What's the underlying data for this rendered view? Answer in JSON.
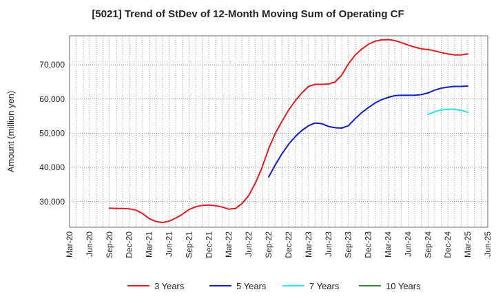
{
  "chart_data": {
    "type": "line",
    "title": "[5021]  Trend of StDev of 12-Month Moving Sum of Operating CF",
    "xlabel": "",
    "ylabel": "Amount (million yen)",
    "ylim": [
      22500,
      78500
    ],
    "yticks": [
      30000,
      40000,
      50000,
      60000,
      70000
    ],
    "ytick_labels": [
      "30,000",
      "40,000",
      "50,000",
      "60,000",
      "70,000"
    ],
    "x_range": [
      "2020-03",
      "2025-06"
    ],
    "xtick_labels": [
      "Mar-20",
      "Jun-20",
      "Sep-20",
      "Dec-20",
      "Mar-21",
      "Jun-21",
      "Sep-21",
      "Dec-21",
      "Mar-22",
      "Jun-22",
      "Sep-22",
      "Dec-22",
      "Mar-23",
      "Jun-23",
      "Sep-23",
      "Dec-23",
      "Mar-24",
      "Jun-24",
      "Sep-24",
      "Dec-24",
      "Mar-25",
      "Jun-25"
    ],
    "grid": true,
    "legend_position": "bottom",
    "series": [
      {
        "name": "3 Years",
        "color": "#e31a1c",
        "points": [
          [
            "2020-09",
            28100
          ],
          [
            "2020-10",
            28000
          ],
          [
            "2020-11",
            28000
          ],
          [
            "2020-12",
            27900
          ],
          [
            "2021-01",
            27500
          ],
          [
            "2021-02",
            26500
          ],
          [
            "2021-03",
            25000
          ],
          [
            "2021-04",
            24200
          ],
          [
            "2021-05",
            23900
          ],
          [
            "2021-06",
            24300
          ],
          [
            "2021-07",
            25200
          ],
          [
            "2021-08",
            26300
          ],
          [
            "2021-09",
            27700
          ],
          [
            "2021-10",
            28500
          ],
          [
            "2021-11",
            28900
          ],
          [
            "2021-12",
            29000
          ],
          [
            "2022-01",
            28800
          ],
          [
            "2022-02",
            28400
          ],
          [
            "2022-03",
            27800
          ],
          [
            "2022-04",
            28000
          ],
          [
            "2022-05",
            29500
          ],
          [
            "2022-06",
            31800
          ],
          [
            "2022-07",
            35500
          ],
          [
            "2022-08",
            40000
          ],
          [
            "2022-09",
            45500
          ],
          [
            "2022-10",
            50000
          ],
          [
            "2022-11",
            53500
          ],
          [
            "2022-12",
            56800
          ],
          [
            "2023-01",
            59500
          ],
          [
            "2023-02",
            61800
          ],
          [
            "2023-03",
            63700
          ],
          [
            "2023-04",
            64300
          ],
          [
            "2023-05",
            64300
          ],
          [
            "2023-06",
            64400
          ],
          [
            "2023-07",
            65000
          ],
          [
            "2023-08",
            67000
          ],
          [
            "2023-09",
            70300
          ],
          [
            "2023-10",
            72800
          ],
          [
            "2023-11",
            74600
          ],
          [
            "2023-12",
            76000
          ],
          [
            "2024-01",
            76900
          ],
          [
            "2024-02",
            77300
          ],
          [
            "2024-03",
            77400
          ],
          [
            "2024-04",
            77100
          ],
          [
            "2024-05",
            76500
          ],
          [
            "2024-06",
            75800
          ],
          [
            "2024-07",
            75200
          ],
          [
            "2024-08",
            74700
          ],
          [
            "2024-09",
            74500
          ],
          [
            "2024-10",
            74100
          ],
          [
            "2024-11",
            73600
          ],
          [
            "2024-12",
            73200
          ],
          [
            "2025-01",
            72900
          ],
          [
            "2025-02",
            72900
          ],
          [
            "2025-03",
            73200
          ]
        ]
      },
      {
        "name": "5 Years",
        "color": "#0a1ec8",
        "points": [
          [
            "2022-09",
            37200
          ],
          [
            "2022-10",
            40800
          ],
          [
            "2022-11",
            44000
          ],
          [
            "2022-12",
            46800
          ],
          [
            "2023-01",
            49000
          ],
          [
            "2023-02",
            50800
          ],
          [
            "2023-03",
            52200
          ],
          [
            "2023-04",
            53000
          ],
          [
            "2023-05",
            52800
          ],
          [
            "2023-06",
            52000
          ],
          [
            "2023-07",
            51600
          ],
          [
            "2023-08",
            51500
          ],
          [
            "2023-09",
            52200
          ],
          [
            "2023-10",
            54200
          ],
          [
            "2023-11",
            56000
          ],
          [
            "2023-12",
            57500
          ],
          [
            "2024-01",
            58800
          ],
          [
            "2024-02",
            59800
          ],
          [
            "2024-03",
            60500
          ],
          [
            "2024-04",
            61000
          ],
          [
            "2024-05",
            61100
          ],
          [
            "2024-06",
            61100
          ],
          [
            "2024-07",
            61100
          ],
          [
            "2024-08",
            61300
          ],
          [
            "2024-09",
            61800
          ],
          [
            "2024-10",
            62600
          ],
          [
            "2024-11",
            63200
          ],
          [
            "2024-12",
            63500
          ],
          [
            "2025-01",
            63700
          ],
          [
            "2025-02",
            63700
          ],
          [
            "2025-03",
            63800
          ]
        ]
      },
      {
        "name": "7 Years",
        "color": "#22e5e5",
        "points": [
          [
            "2024-09",
            55500
          ],
          [
            "2024-10",
            56300
          ],
          [
            "2024-11",
            56800
          ],
          [
            "2024-12",
            57000
          ],
          [
            "2025-01",
            57000
          ],
          [
            "2025-02",
            56700
          ],
          [
            "2025-03",
            56100
          ]
        ]
      },
      {
        "name": "10 Years",
        "color": "#2e8b2e",
        "points": []
      }
    ]
  }
}
